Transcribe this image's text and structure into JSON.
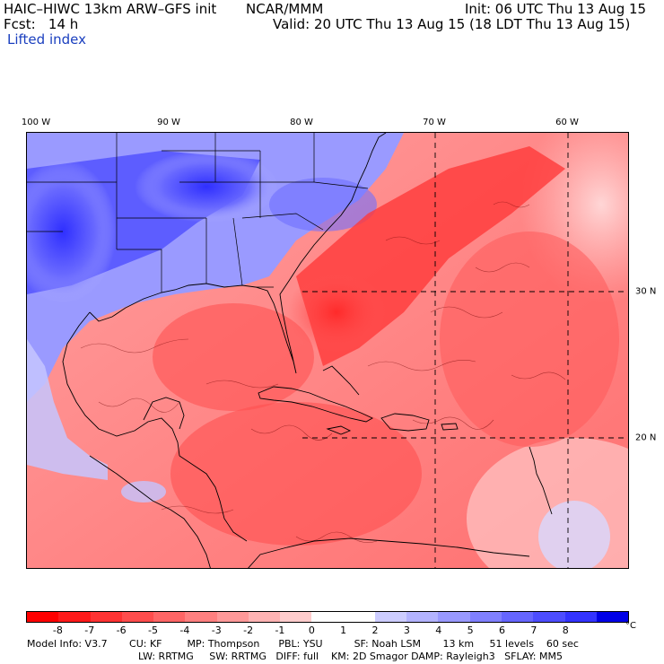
{
  "header": {
    "model": "HAIC–HIWC 13km ARW–GFS init",
    "org": "NCAR/MMM",
    "init": "Init: 06 UTC Thu 13 Aug 15",
    "fcst": "Fcst:   14 h",
    "valid": "Valid: 20 UTC Thu 13 Aug 15 (18 LDT Thu 13 Aug 15)",
    "field": "Lifted index"
  },
  "map": {
    "lon_labels": [
      "100 W",
      "90 W",
      "80 W",
      "70 W",
      "60 W"
    ],
    "lat_labels": [
      "30 N",
      "20 N"
    ],
    "field_units": "°C",
    "field_range": [
      -9,
      9
    ],
    "colors": {
      "strong_neg": "#ff1a1a",
      "mid_neg": "#ff6666",
      "weak_neg": "#ffb3b3",
      "neutral": "#ffffff",
      "weak_pos": "#b3b3ff",
      "mid_pos": "#6666ff",
      "strong_pos": "#1a1aff",
      "border": "#000000",
      "grid": "#000000"
    }
  },
  "colorbar": {
    "colors": [
      "#ff0000",
      "#ff1a1a",
      "#ff3333",
      "#ff4d4d",
      "#ff6666",
      "#ff8080",
      "#ff9999",
      "#ffb3b3",
      "#ffcccc",
      "#ffffff",
      "#ffffff",
      "#ccccff",
      "#b3b3ff",
      "#9999ff",
      "#8080ff",
      "#6666ff",
      "#4d4dff",
      "#3333ff",
      "#0000e6"
    ],
    "labels": [
      "-8",
      "-7",
      "-6",
      "-5",
      "-4",
      "-3",
      "-2",
      "-1",
      "0",
      "1",
      "2",
      "3",
      "4",
      "5",
      "6",
      "7",
      "8"
    ],
    "unit": "°C"
  },
  "model_info": {
    "line1": "Model Info: V3.7       CU: KF        MP: Thompson      PBL: YSU          SF: Noah LSM       13 km     51 levels    60 sec",
    "line2": "LW: RRTMG     SW: RRTMG   DIFF: full    KM: 2D Smagor DAMP: Rayleigh3   SFLAY: MM5"
  }
}
